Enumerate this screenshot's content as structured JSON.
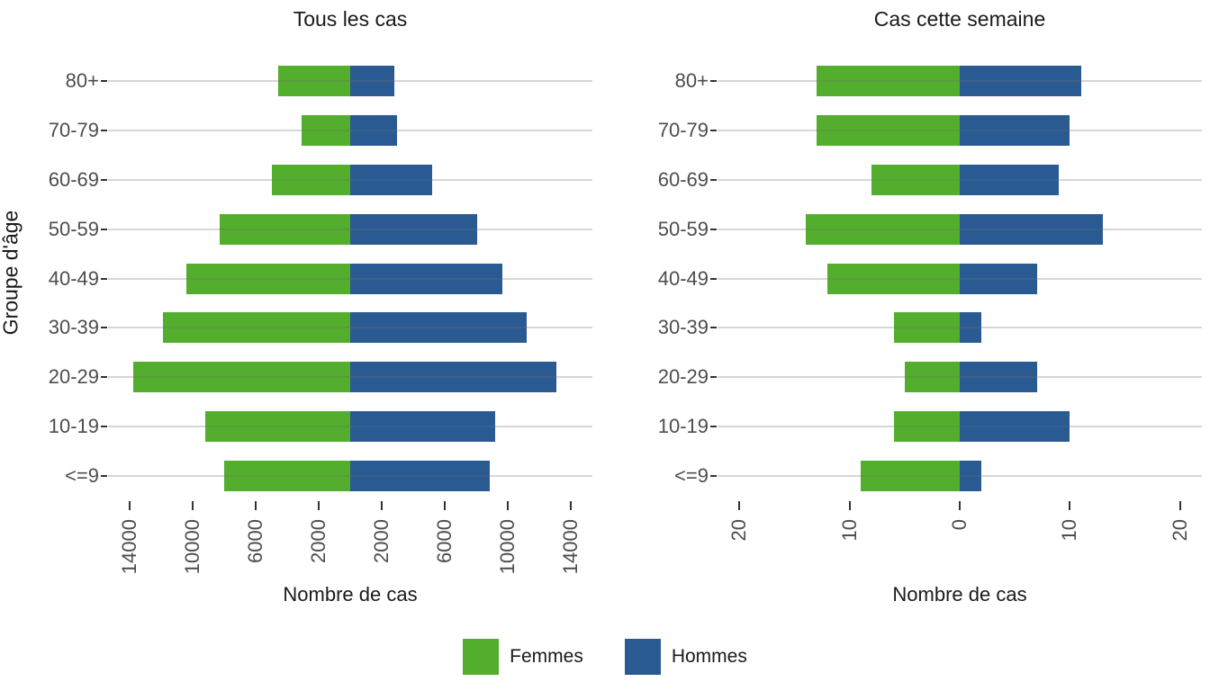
{
  "figure": {
    "y_axis_title": "Groupe d'âge",
    "x_axis_title": "Nombre de cas",
    "categories_top_to_bottom": [
      "80+",
      "70-79",
      "60-69",
      "50-59",
      "40-49",
      "30-39",
      "20-29",
      "10-19",
      "<=9"
    ],
    "legend": [
      {
        "label": "Femmes",
        "color": "#52AE2C"
      },
      {
        "label": "Hommes",
        "color": "#2A5A92"
      }
    ],
    "colors": {
      "femmes_green": "#52AE2C",
      "hommes_blue": "#2A5A92",
      "gridline": "#d6d6d6",
      "tick_mark": "#333333",
      "tick_label": "#4d4d4d",
      "title_text": "#1a1a1a",
      "background": "#ffffff"
    }
  },
  "chart_data": [
    {
      "type": "bar",
      "subtype": "population-pyramid",
      "title": "Tous les cas",
      "xlabel": "Nombre de cas",
      "ylabel": "Groupe d'âge",
      "orientation": "horizontal",
      "categories": [
        "80+",
        "70-79",
        "60-69",
        "50-59",
        "40-49",
        "30-39",
        "20-29",
        "10-19",
        "<=9"
      ],
      "series": [
        {
          "name": "Femmes",
          "side": "left",
          "color": "#52AE2C",
          "values": [
            4600,
            3100,
            5000,
            8300,
            10400,
            11900,
            13800,
            9200,
            8000
          ]
        },
        {
          "name": "Hommes",
          "side": "right",
          "color": "#2A5A92",
          "values": [
            2800,
            3000,
            5200,
            8100,
            9700,
            11200,
            13100,
            9200,
            8900
          ]
        }
      ],
      "xlim": [
        -15400,
        15400
      ],
      "x_ticks": [
        -14000,
        -10000,
        -6000,
        -2000,
        2000,
        6000,
        10000,
        14000
      ],
      "x_tick_labels": [
        "14000",
        "10000",
        "6000",
        "2000",
        "2000",
        "6000",
        "10000",
        "14000"
      ],
      "grid": "horizontal-only",
      "legend_position": "bottom"
    },
    {
      "type": "bar",
      "subtype": "population-pyramid",
      "title": "Cas cette semaine",
      "xlabel": "Nombre de cas",
      "ylabel": "Groupe d'âge",
      "orientation": "horizontal",
      "categories": [
        "80+",
        "70-79",
        "60-69",
        "50-59",
        "40-49",
        "30-39",
        "20-29",
        "10-19",
        "<=9"
      ],
      "series": [
        {
          "name": "Femmes",
          "side": "left",
          "color": "#52AE2C",
          "values": [
            13,
            13,
            8,
            14,
            12,
            6,
            5,
            6,
            9
          ]
        },
        {
          "name": "Hommes",
          "side": "right",
          "color": "#2A5A92",
          "values": [
            11,
            10,
            9,
            13,
            7,
            2,
            7,
            10,
            2
          ]
        }
      ],
      "xlim": [
        -22,
        22
      ],
      "x_ticks": [
        -20,
        -10,
        0,
        10,
        20
      ],
      "x_tick_labels": [
        "20",
        "10",
        "0",
        "10",
        "20"
      ],
      "grid": "horizontal-only",
      "legend_position": "bottom"
    }
  ]
}
